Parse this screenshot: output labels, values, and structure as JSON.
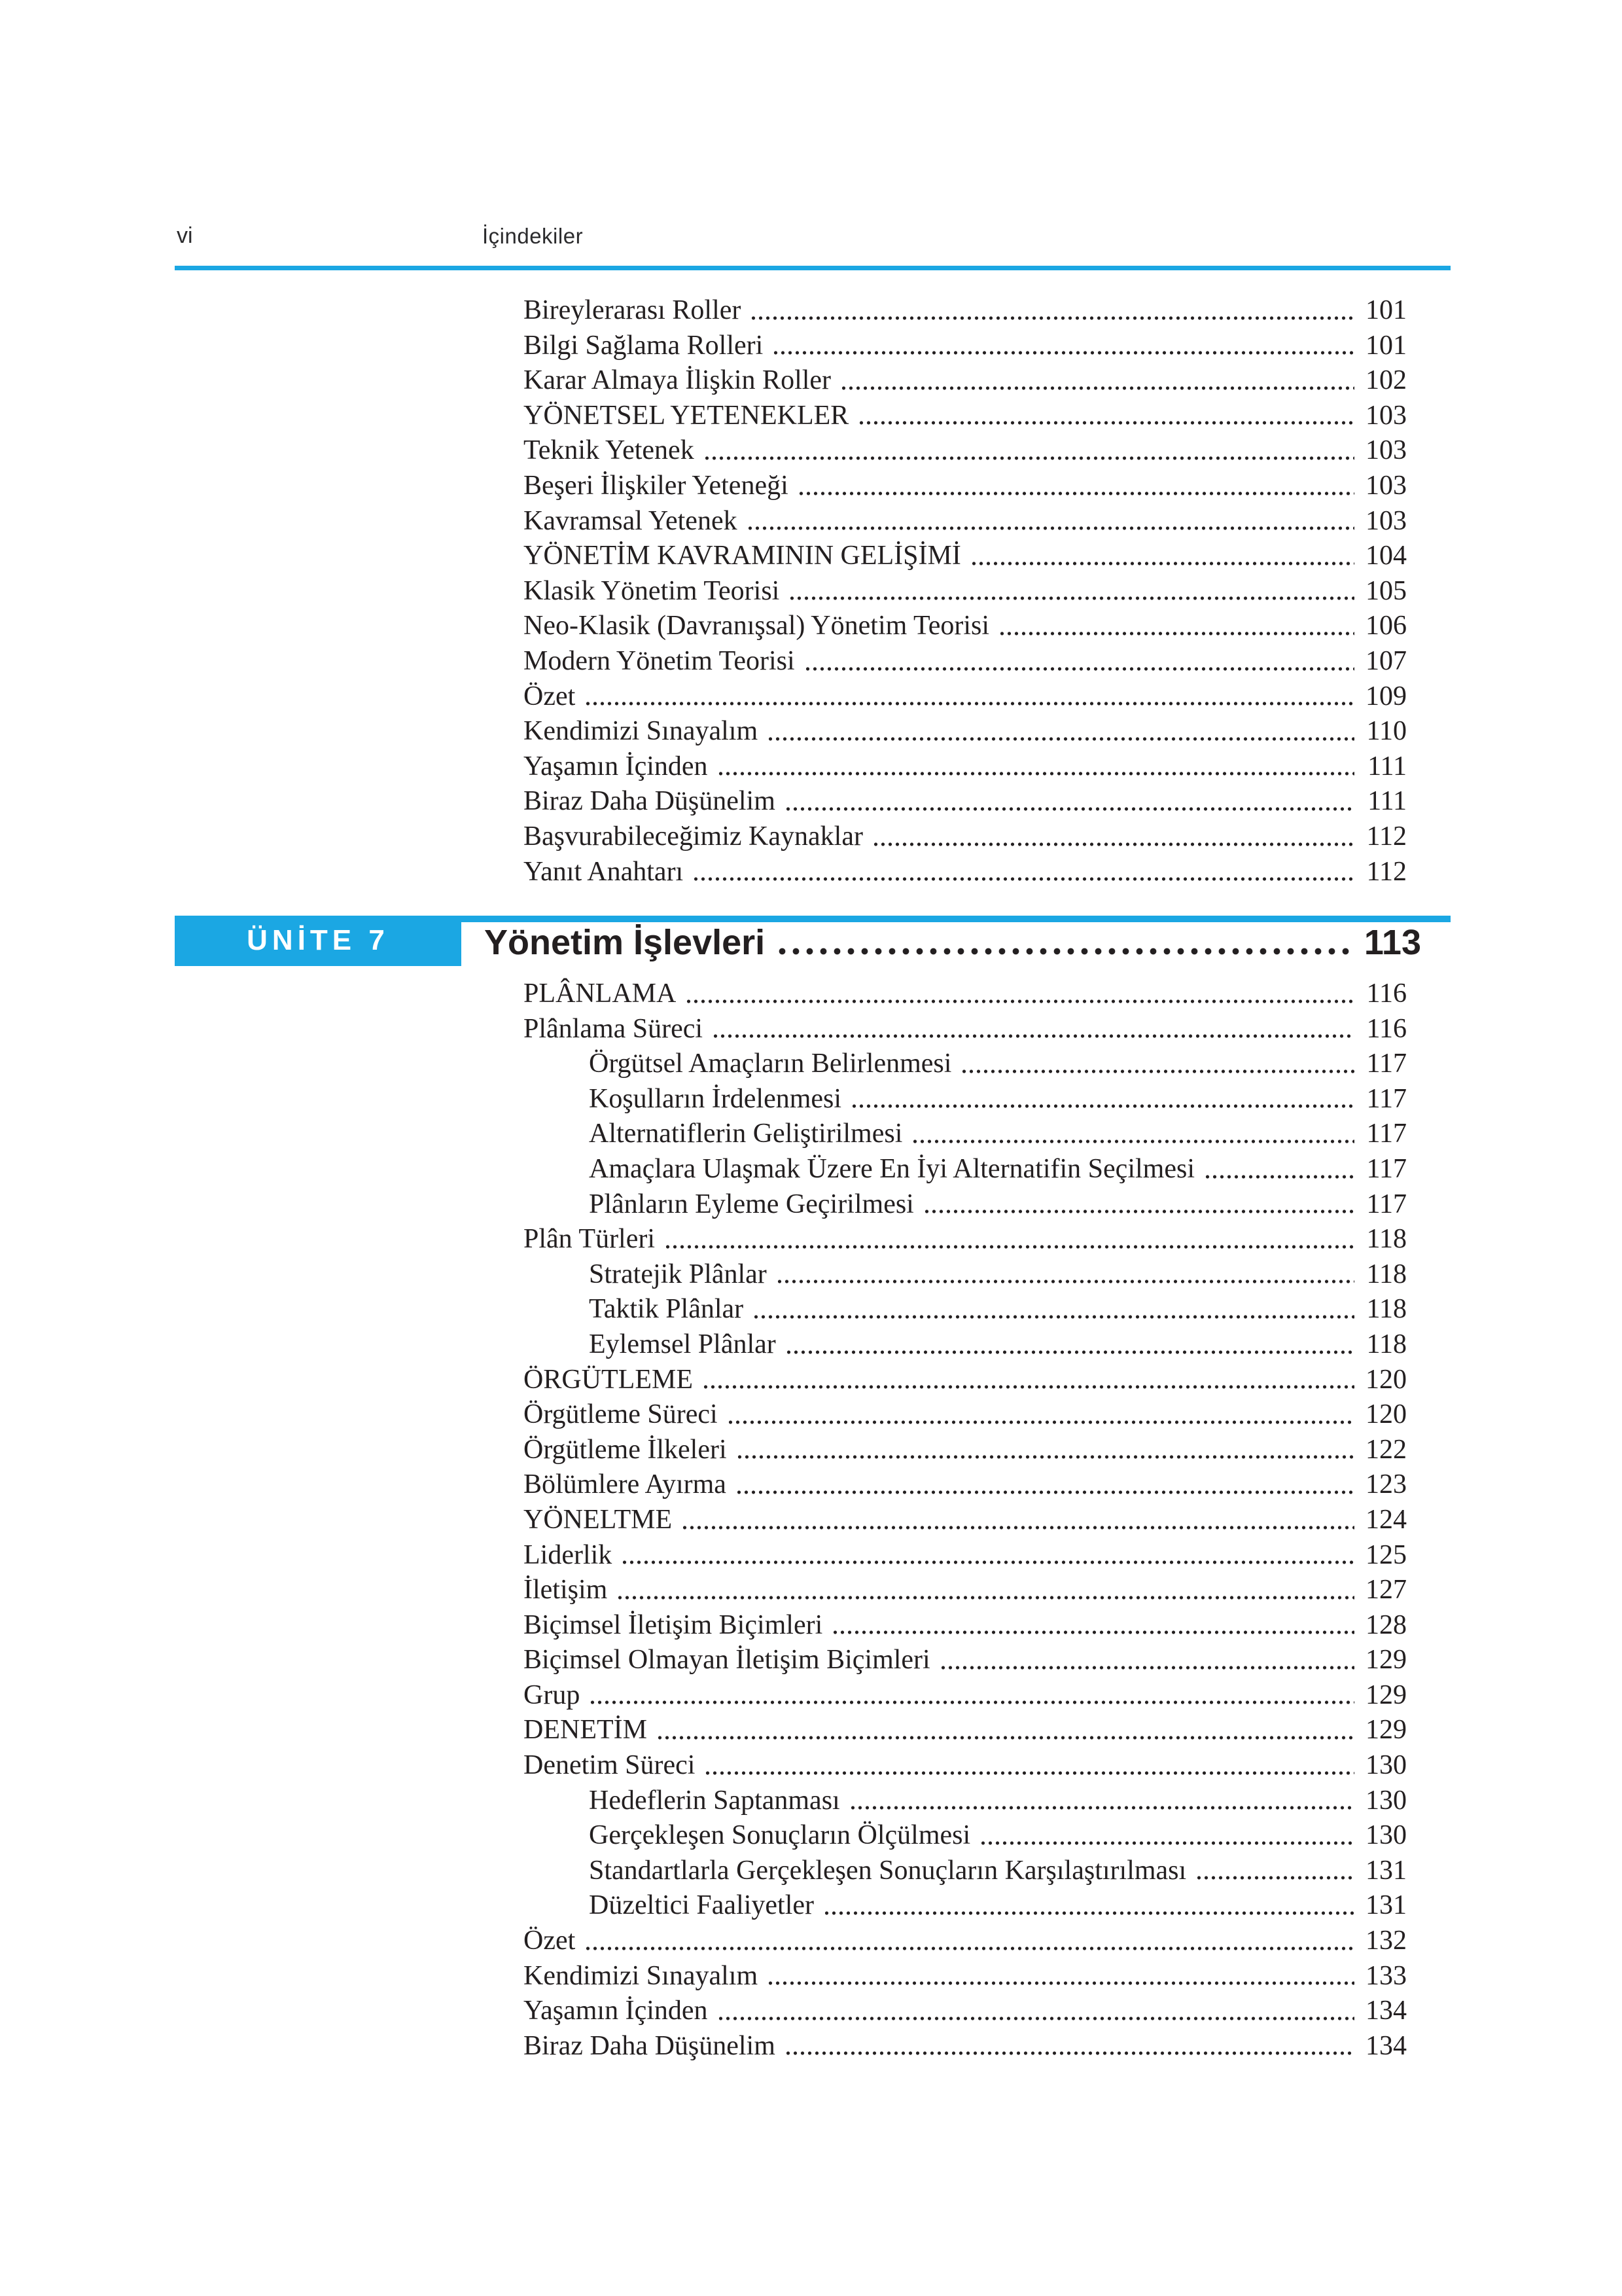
{
  "header": {
    "folio": "vi",
    "title": "İçindekiler"
  },
  "colors": {
    "accent": "#1ba7e3",
    "text": "#231f20"
  },
  "continuation_entries": [
    {
      "label": "Bireylerarası Roller",
      "page": "101",
      "indent": 0
    },
    {
      "label": "Bilgi Sağlama Rolleri",
      "page": "101",
      "indent": 0
    },
    {
      "label": "Karar Almaya İlişkin Roller",
      "page": "102",
      "indent": 0
    },
    {
      "label": "YÖNETSEL YETENEKLER",
      "page": "103",
      "indent": 0
    },
    {
      "label": "Teknik Yetenek",
      "page": "103",
      "indent": 0
    },
    {
      "label": "Beşeri İlişkiler Yeteneği",
      "page": "103",
      "indent": 0
    },
    {
      "label": "Kavramsal Yetenek",
      "page": "103",
      "indent": 0
    },
    {
      "label": "YÖNETİM KAVRAMININ GELİŞİMİ",
      "page": "104",
      "indent": 0
    },
    {
      "label": "Klasik Yönetim Teorisi",
      "page": "105",
      "indent": 0
    },
    {
      "label": "Neo-Klasik (Davranışsal) Yönetim Teorisi",
      "page": "106",
      "indent": 0
    },
    {
      "label": "Modern Yönetim Teorisi",
      "page": "107",
      "indent": 0
    },
    {
      "label": "Özet",
      "page": "109",
      "indent": 0
    },
    {
      "label": "Kendimizi Sınayalım",
      "page": "110",
      "indent": 0
    },
    {
      "label": "Yaşamın İçinden",
      "page": "111",
      "indent": 0
    },
    {
      "label": "Biraz Daha Düşünelim",
      "page": "111",
      "indent": 0
    },
    {
      "label": "Başvurabileceğimiz Kaynaklar",
      "page": "112",
      "indent": 0
    },
    {
      "label": "Yanıt Anahtarı",
      "page": "112",
      "indent": 0
    }
  ],
  "unit": {
    "badge_label": "ÜNİTE 7",
    "title": "Yönetim İşlevleri",
    "title_page": "113",
    "entries": [
      {
        "label": "PLÂNLAMA",
        "page": "116",
        "indent": 0
      },
      {
        "label": "Plânlama Süreci",
        "page": "116",
        "indent": 0
      },
      {
        "label": "Örgütsel Amaçların Belirlenmesi",
        "page": "117",
        "indent": 1
      },
      {
        "label": "Koşulların İrdelenmesi",
        "page": "117",
        "indent": 1
      },
      {
        "label": "Alternatiflerin Geliştirilmesi",
        "page": "117",
        "indent": 1
      },
      {
        "label": "Amaçlara Ulaşmak Üzere En İyi Alternatifin Seçilmesi",
        "page": "117",
        "indent": 1
      },
      {
        "label": "Plânların Eyleme Geçirilmesi",
        "page": "117",
        "indent": 1
      },
      {
        "label": "Plân Türleri",
        "page": "118",
        "indent": 0
      },
      {
        "label": "Stratejik Plânlar",
        "page": "118",
        "indent": 1
      },
      {
        "label": "Taktik Plânlar",
        "page": "118",
        "indent": 1
      },
      {
        "label": "Eylemsel Plânlar",
        "page": "118",
        "indent": 1
      },
      {
        "label": "ÖRGÜTLEME",
        "page": "120",
        "indent": 0
      },
      {
        "label": "Örgütleme Süreci",
        "page": "120",
        "indent": 0
      },
      {
        "label": "Örgütleme İlkeleri",
        "page": "122",
        "indent": 0
      },
      {
        "label": "Bölümlere Ayırma",
        "page": "123",
        "indent": 0
      },
      {
        "label": "YÖNELTME",
        "page": "124",
        "indent": 0
      },
      {
        "label": "Liderlik",
        "page": "125",
        "indent": 0
      },
      {
        "label": "İletişim",
        "page": "127",
        "indent": 0
      },
      {
        "label": "Biçimsel İletişim Biçimleri",
        "page": "128",
        "indent": 0
      },
      {
        "label": "Biçimsel Olmayan İletişim Biçimleri",
        "page": "129",
        "indent": 0
      },
      {
        "label": "Grup",
        "page": "129",
        "indent": 0
      },
      {
        "label": "DENETİM",
        "page": "129",
        "indent": 0
      },
      {
        "label": "Denetim Süreci",
        "page": "130",
        "indent": 0
      },
      {
        "label": "Hedeflerin Saptanması",
        "page": "130",
        "indent": 1
      },
      {
        "label": "Gerçekleşen Sonuçların Ölçülmesi",
        "page": "130",
        "indent": 1
      },
      {
        "label": "Standartlarla Gerçekleşen Sonuçların Karşılaştırılması",
        "page": "131",
        "indent": 1
      },
      {
        "label": "Düzeltici Faaliyetler",
        "page": "131",
        "indent": 1
      },
      {
        "label": "Özet",
        "page": "132",
        "indent": 0
      },
      {
        "label": "Kendimizi Sınayalım",
        "page": "133",
        "indent": 0
      },
      {
        "label": "Yaşamın İçinden",
        "page": "134",
        "indent": 0
      },
      {
        "label": "Biraz Daha Düşünelim",
        "page": "134",
        "indent": 0
      }
    ]
  }
}
